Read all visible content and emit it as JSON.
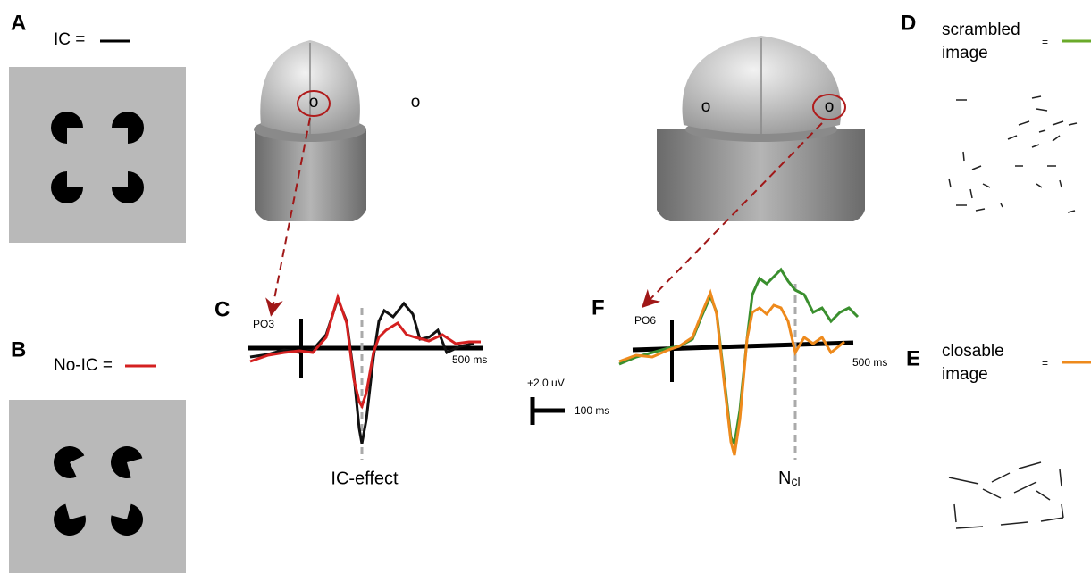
{
  "panels": {
    "a": {
      "label": "A",
      "legend": "IC ="
    },
    "b": {
      "label": "B",
      "legend": "No-IC ="
    },
    "c": {
      "label": "C",
      "electrode": "PO3",
      "time_label": "500 ms",
      "effect": "IC-effect"
    },
    "scale_bar": {
      "amplitude": "+2.0 uV",
      "time": "100 ms"
    },
    "f": {
      "label": "F",
      "electrode": "PO6",
      "time_label": "500 ms",
      "effect_main": "N",
      "effect_sub": "cl"
    },
    "d": {
      "label": "D",
      "legend_lines": [
        "scrambled",
        "image"
      ],
      "equals": "="
    },
    "e": {
      "label": "E",
      "legend_lines": [
        "closable",
        "image"
      ],
      "equals": "="
    }
  },
  "brains": {
    "left_markers": [
      "o",
      "o"
    ],
    "right_markers": [
      "o",
      "o"
    ]
  }
}
